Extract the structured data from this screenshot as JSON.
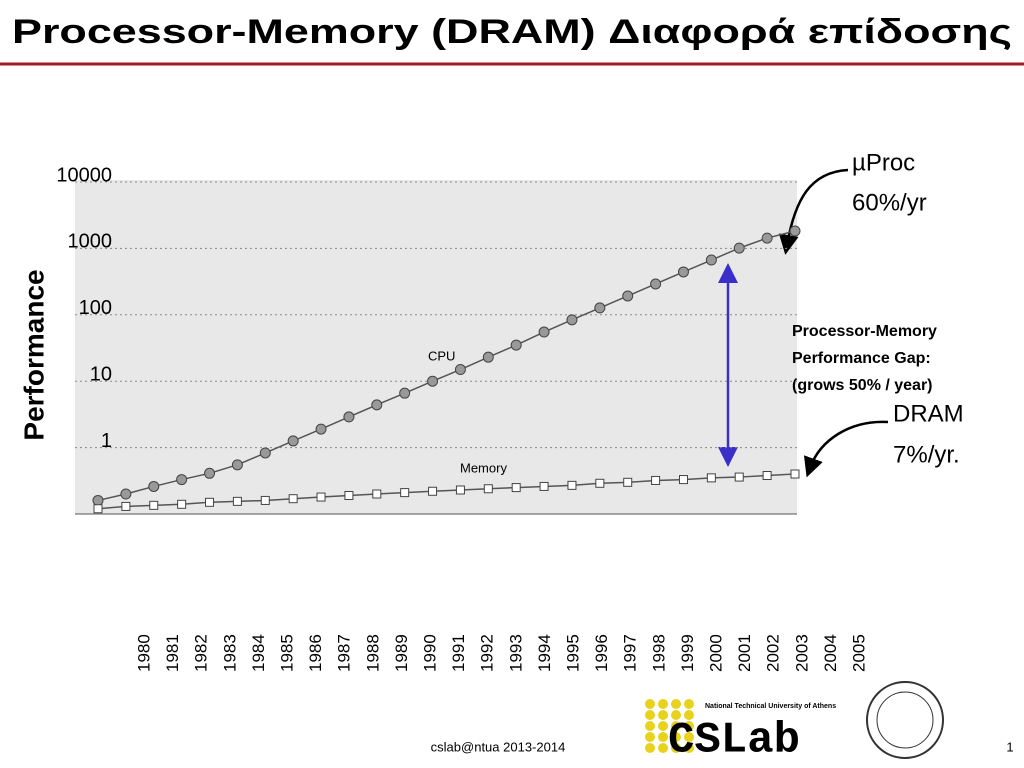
{
  "chart_data": {
    "type": "line",
    "title": "Processor-Memory (DRAM) Διαφορά επίδοσης",
    "ylabel": "Performance",
    "categories": [
      "1980",
      "1981",
      "1982",
      "1983",
      "1984",
      "1985",
      "1986",
      "1987",
      "1988",
      "1989",
      "1990",
      "1991",
      "1992",
      "1993",
      "1994",
      "1995",
      "1996",
      "1997",
      "1998",
      "1999",
      "2000",
      "2001",
      "2002",
      "2003",
      "2004",
      "2005"
    ],
    "series": [
      {
        "name": "CPU",
        "color": "#999999",
        "marker": "circle",
        "values": [
          0.16,
          0.2,
          0.26,
          0.33,
          0.41,
          0.55,
          0.83,
          1.26,
          1.9,
          2.9,
          4.4,
          6.6,
          10,
          15,
          23,
          35,
          55,
          84,
          127,
          192,
          291,
          442,
          668,
          1010,
          1430,
          1830
        ]
      },
      {
        "name": "Memory",
        "color": "#ffffff",
        "marker": "square",
        "values": [
          0.12,
          0.13,
          0.135,
          0.14,
          0.15,
          0.155,
          0.16,
          0.17,
          0.18,
          0.19,
          0.2,
          0.21,
          0.22,
          0.23,
          0.24,
          0.25,
          0.26,
          0.27,
          0.29,
          0.3,
          0.32,
          0.33,
          0.35,
          0.36,
          0.38,
          0.4
        ]
      }
    ],
    "log_y": true,
    "ylim": [
      0.1,
      10000
    ],
    "yticks": [
      1,
      10,
      100,
      1000,
      10000
    ],
    "grid": true,
    "annotations": {
      "uproc": [
        "µProc",
        "60%/yr"
      ],
      "dram": [
        "DRAM",
        "7%/yr."
      ],
      "gap": [
        "Processor-Memory",
        "Performance Gap:",
        "(grows 50% / year)"
      ]
    }
  },
  "slide": {
    "footer": "cslab@ntua 2013-2014",
    "page": "1",
    "logo": "CSLab",
    "university": "National Technical University of Athens"
  }
}
